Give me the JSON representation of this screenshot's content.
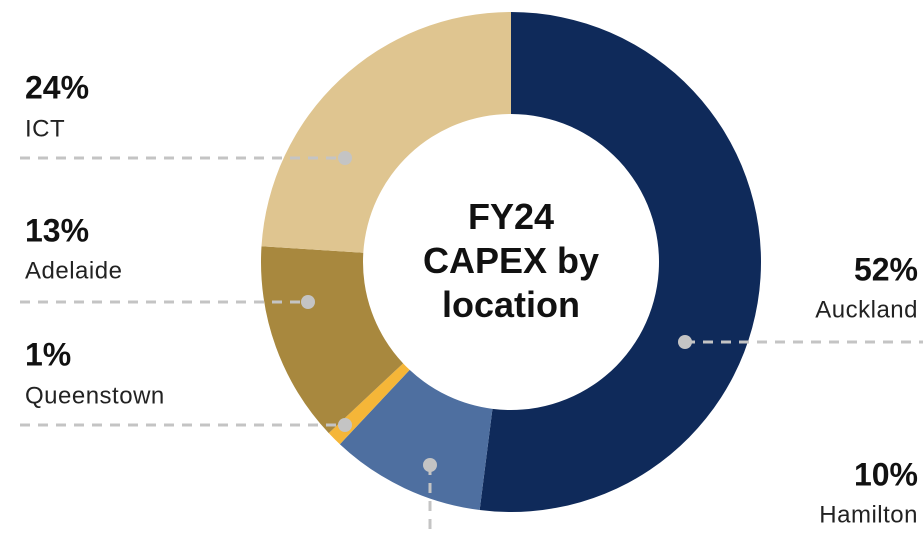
{
  "chart_data": {
    "type": "donut",
    "title": "FY24 CAPEX by location",
    "categories": [
      "Auckland",
      "Hamilton",
      "Queenstown",
      "Adelaide",
      "ICT"
    ],
    "values": [
      52,
      10,
      1,
      13,
      24
    ],
    "value_labels": [
      "52%",
      "10%",
      "1%",
      "13%",
      "24%"
    ],
    "colors": [
      "#0f2a5a",
      "#4e6fa0",
      "#f5b638",
      "#a8883e",
      "#dfc590"
    ]
  }
}
